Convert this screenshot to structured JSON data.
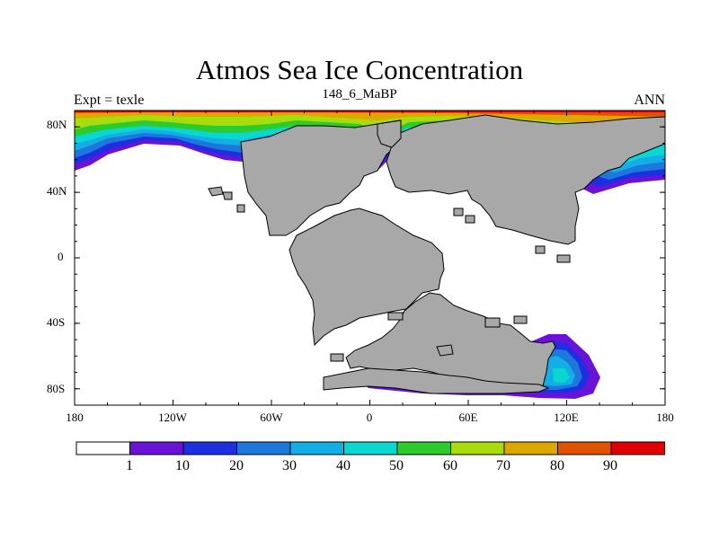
{
  "title": "Atmos Sea Ice Concentration",
  "subtitle": "148_6_MaBP",
  "left_label": "Expt = texle",
  "right_label": "ANN",
  "y_ticks": [
    "80N",
    "40N",
    "0",
    "40S",
    "80S"
  ],
  "x_ticks": [
    "180",
    "120W",
    "60W",
    "0",
    "60E",
    "120E",
    "180"
  ],
  "colorbar": {
    "labels": [
      "1",
      "10",
      "20",
      "30",
      "40",
      "50",
      "60",
      "70",
      "80",
      "90"
    ],
    "colors": [
      "#ffffff",
      "#6a13d6",
      "#1e2fe0",
      "#1d78dc",
      "#14aee6",
      "#0ad6d2",
      "#2ccc2c",
      "#a8dc0c",
      "#dca800",
      "#e05200",
      "#e00000"
    ]
  },
  "chart_data": {
    "type": "heatmap",
    "title": "Atmos Sea Ice Concentration",
    "variable": "Sea Ice Concentration",
    "units": "%",
    "levels": [
      1,
      10,
      20,
      30,
      40,
      50,
      60,
      70,
      80,
      90
    ],
    "x_ticks": [
      "180",
      "120W",
      "60W",
      "0",
      "60E",
      "120E",
      "180"
    ],
    "y_ticks": [
      "80N",
      "40N",
      "0",
      "40S",
      "80S"
    ],
    "xlim": [
      -180,
      180
    ],
    "ylim": [
      -90,
      90
    ]
  }
}
